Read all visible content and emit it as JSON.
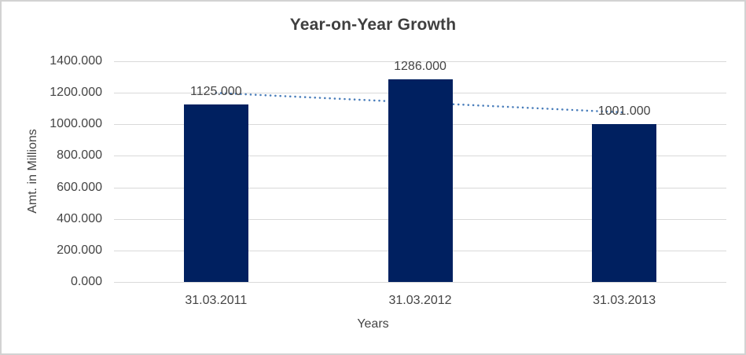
{
  "chart_data": {
    "type": "bar",
    "title": "Year-on-Year Growth",
    "xlabel": "Years",
    "ylabel": "Amt. in Millions",
    "categories": [
      "31.03.2011",
      "31.03.2012",
      "31.03.2013"
    ],
    "values": [
      1125,
      1286,
      1001
    ],
    "value_labels": [
      "1125.000",
      "1286.000",
      "1001.000"
    ],
    "series_name": "Amt. in Millions",
    "ylim": [
      0,
      1400
    ],
    "ytick_step": 200,
    "ytick_labels": [
      "1400.000",
      "1200.000",
      "1000.000",
      "800.000",
      "600.000",
      "400.000",
      "200.000",
      "0.000"
    ],
    "grid": true,
    "legend": "none",
    "trendline": {
      "type": "linear",
      "style": "dotted",
      "start_value": 1199.333,
      "end_value": 1075.333
    },
    "colors": {
      "bar": "#002060",
      "trendline": "#4a7ebb",
      "gridline": "#d9d9d9",
      "axis_line": "#d9d9d9",
      "text": "#444444",
      "title_text": "#3f3f3f",
      "frame_border": "#d2d2d2",
      "background": "#ffffff"
    }
  }
}
